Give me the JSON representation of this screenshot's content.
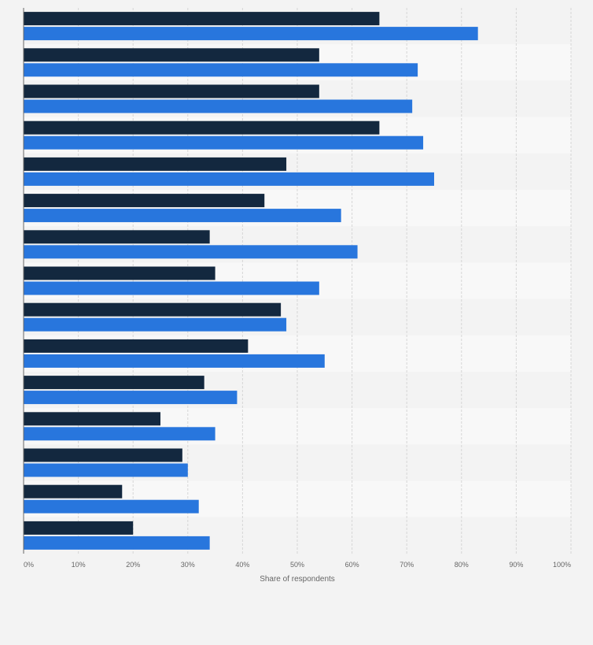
{
  "chart_data": {
    "type": "bar",
    "orientation": "horizontal",
    "xlabel": "Share of respondents",
    "xlim": [
      0,
      100
    ],
    "x_ticks": [
      "0%",
      "10%",
      "20%",
      "30%",
      "40%",
      "50%",
      "60%",
      "70%",
      "80%",
      "90%",
      "100%"
    ],
    "grid": true,
    "categories": [
      "",
      "",
      "",
      "",
      "",
      "",
      "",
      "",
      "",
      "",
      "",
      "",
      "",
      "",
      ""
    ],
    "series": [
      {
        "color": "#13283f",
        "values": [
          65,
          54,
          54,
          65,
          48,
          44,
          34,
          35,
          47,
          41,
          33,
          25,
          29,
          18,
          20
        ]
      },
      {
        "color": "#2876dd",
        "values": [
          83,
          72,
          71,
          73,
          75,
          58,
          61,
          54,
          48,
          55,
          39,
          35,
          30,
          32,
          34
        ]
      }
    ]
  }
}
